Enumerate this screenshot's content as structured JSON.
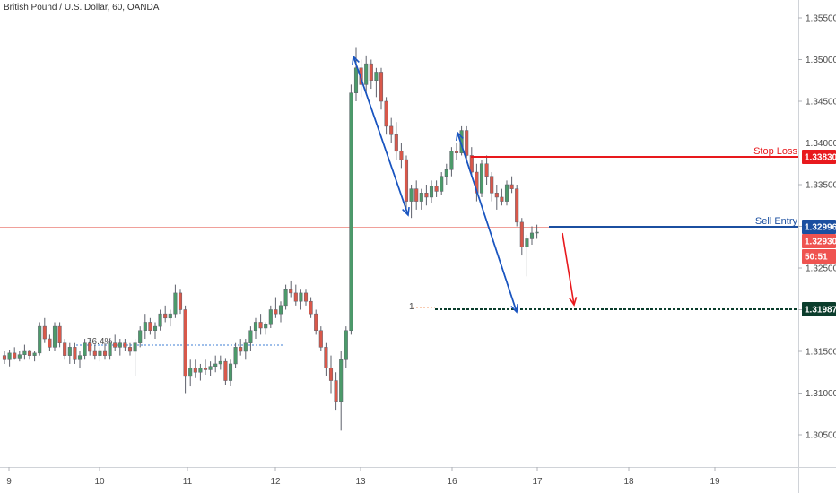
{
  "chart_data": {
    "type": "candlestick",
    "title": "British Pound / U.S. Dollar, 60, OANDA",
    "ylim": [
      1.3025,
      1.3575
    ],
    "y_ticks": [
      "1.35500",
      "1.35000",
      "1.34500",
      "1.34000",
      "1.33500",
      "1.33000",
      "1.32500",
      "1.32000",
      "1.31500",
      "1.31000",
      "1.30500"
    ],
    "x_ticks": [
      "9",
      "10",
      "11",
      "12",
      "13",
      "16",
      "17",
      "18",
      "19"
    ],
    "levels": {
      "stop_loss": {
        "label": "Stop Loss",
        "value": "1.33830",
        "color": "#e8191d"
      },
      "sell_entry": {
        "label": "Sell Entry",
        "value": "1.32996",
        "color": "#1b4fa0"
      },
      "target": {
        "value": "1.31987",
        "color": "#0b3d2c"
      },
      "current_price": {
        "value": "1.32930",
        "color": "#ef5350"
      },
      "countdown": {
        "value": "50:51",
        "color": "#ef5350"
      }
    },
    "fib_label": "76.4%",
    "fib_marker": "1",
    "colors": {
      "up": "#4c9a6a",
      "down": "#d9584a",
      "arrow_blue": "#1a55c0",
      "arrow_red": "#e8191d"
    },
    "candles": [
      [
        1.3145,
        1.315,
        1.3135,
        1.314
      ],
      [
        1.314,
        1.3152,
        1.3132,
        1.3148
      ],
      [
        1.3148,
        1.3155,
        1.314,
        1.3142
      ],
      [
        1.3142,
        1.315,
        1.3138,
        1.3146
      ],
      [
        1.3146,
        1.3158,
        1.314,
        1.315
      ],
      [
        1.315,
        1.3152,
        1.314,
        1.3145
      ],
      [
        1.3145,
        1.315,
        1.3138,
        1.3148
      ],
      [
        1.3148,
        1.3185,
        1.3145,
        1.318
      ],
      [
        1.318,
        1.319,
        1.316,
        1.3165
      ],
      [
        1.3165,
        1.317,
        1.315,
        1.3155
      ],
      [
        1.3155,
        1.3185,
        1.315,
        1.318
      ],
      [
        1.318,
        1.3185,
        1.3155,
        1.316
      ],
      [
        1.316,
        1.3165,
        1.314,
        1.3145
      ],
      [
        1.3145,
        1.316,
        1.3135,
        1.3155
      ],
      [
        1.3155,
        1.316,
        1.3135,
        1.314
      ],
      [
        1.314,
        1.315,
        1.313,
        1.3145
      ],
      [
        1.3145,
        1.3165,
        1.314,
        1.316
      ],
      [
        1.316,
        1.3165,
        1.3145,
        1.315
      ],
      [
        1.315,
        1.3158,
        1.314,
        1.3145
      ],
      [
        1.3145,
        1.3155,
        1.3138,
        1.315
      ],
      [
        1.315,
        1.316,
        1.314,
        1.3145
      ],
      [
        1.3145,
        1.3165,
        1.314,
        1.316
      ],
      [
        1.316,
        1.317,
        1.315,
        1.3155
      ],
      [
        1.3155,
        1.3165,
        1.3145,
        1.316
      ],
      [
        1.316,
        1.3165,
        1.315,
        1.3155
      ],
      [
        1.3155,
        1.316,
        1.3145,
        1.315
      ],
      [
        1.315,
        1.3165,
        1.312,
        1.316
      ],
      [
        1.316,
        1.318,
        1.3155,
        1.3175
      ],
      [
        1.3175,
        1.3195,
        1.3165,
        1.3185
      ],
      [
        1.3185,
        1.319,
        1.317,
        1.3175
      ],
      [
        1.3175,
        1.3185,
        1.3165,
        1.318
      ],
      [
        1.318,
        1.32,
        1.3175,
        1.3195
      ],
      [
        1.3195,
        1.3205,
        1.3185,
        1.319
      ],
      [
        1.319,
        1.32,
        1.318,
        1.3195
      ],
      [
        1.3195,
        1.323,
        1.319,
        1.322
      ],
      [
        1.322,
        1.3225,
        1.3195,
        1.32
      ],
      [
        1.32,
        1.3205,
        1.31,
        1.312
      ],
      [
        1.312,
        1.314,
        1.3108,
        1.313
      ],
      [
        1.313,
        1.314,
        1.3118,
        1.3125
      ],
      [
        1.3125,
        1.3135,
        1.3115,
        1.313
      ],
      [
        1.313,
        1.314,
        1.3122,
        1.3128
      ],
      [
        1.3128,
        1.3138,
        1.312,
        1.3132
      ],
      [
        1.3132,
        1.3145,
        1.3125,
        1.3135
      ],
      [
        1.3135,
        1.3145,
        1.3128,
        1.3138
      ],
      [
        1.3138,
        1.3142,
        1.311,
        1.3115
      ],
      [
        1.3115,
        1.314,
        1.3108,
        1.3135
      ],
      [
        1.3135,
        1.316,
        1.313,
        1.3155
      ],
      [
        1.3155,
        1.3165,
        1.3145,
        1.315
      ],
      [
        1.315,
        1.3165,
        1.314,
        1.316
      ],
      [
        1.316,
        1.318,
        1.315,
        1.3175
      ],
      [
        1.3175,
        1.319,
        1.3165,
        1.3185
      ],
      [
        1.3185,
        1.3195,
        1.317,
        1.3178
      ],
      [
        1.3178,
        1.3185,
        1.317,
        1.3182
      ],
      [
        1.3182,
        1.3205,
        1.3178,
        1.32
      ],
      [
        1.32,
        1.3215,
        1.319,
        1.3195
      ],
      [
        1.3195,
        1.321,
        1.3185,
        1.3205
      ],
      [
        1.3205,
        1.323,
        1.32,
        1.3225
      ],
      [
        1.3225,
        1.3235,
        1.3215,
        1.322
      ],
      [
        1.322,
        1.323,
        1.3205,
        1.321
      ],
      [
        1.321,
        1.3225,
        1.32,
        1.322
      ],
      [
        1.322,
        1.3225,
        1.3205,
        1.321
      ],
      [
        1.321,
        1.3215,
        1.319,
        1.3195
      ],
      [
        1.3195,
        1.32,
        1.317,
        1.3175
      ],
      [
        1.3175,
        1.318,
        1.315,
        1.3155
      ],
      [
        1.3155,
        1.316,
        1.312,
        1.313
      ],
      [
        1.313,
        1.3145,
        1.31,
        1.3115
      ],
      [
        1.3115,
        1.3125,
        1.308,
        1.309
      ],
      [
        1.309,
        1.315,
        1.3055,
        1.314
      ],
      [
        1.314,
        1.318,
        1.313,
        1.3175
      ],
      [
        1.3175,
        1.347,
        1.317,
        1.346
      ],
      [
        1.346,
        1.3515,
        1.345,
        1.349
      ],
      [
        1.349,
        1.35,
        1.3455,
        1.347
      ],
      [
        1.347,
        1.3505,
        1.346,
        1.3495
      ],
      [
        1.3495,
        1.35,
        1.3465,
        1.3475
      ],
      [
        1.3475,
        1.349,
        1.3455,
        1.3485
      ],
      [
        1.3485,
        1.349,
        1.344,
        1.345
      ],
      [
        1.345,
        1.3455,
        1.341,
        1.342
      ],
      [
        1.342,
        1.343,
        1.34,
        1.341
      ],
      [
        1.341,
        1.3425,
        1.338,
        1.339
      ],
      [
        1.339,
        1.34,
        1.337,
        1.338
      ],
      [
        1.338,
        1.3385,
        1.332,
        1.333
      ],
      [
        1.333,
        1.335,
        1.331,
        1.3345
      ],
      [
        1.3345,
        1.3355,
        1.332,
        1.333
      ],
      [
        1.333,
        1.3345,
        1.332,
        1.334
      ],
      [
        1.334,
        1.335,
        1.3325,
        1.3335
      ],
      [
        1.3335,
        1.3355,
        1.3328,
        1.3348
      ],
      [
        1.3348,
        1.3355,
        1.3335,
        1.3342
      ],
      [
        1.3342,
        1.3365,
        1.3338,
        1.336
      ],
      [
        1.336,
        1.3375,
        1.335,
        1.3368
      ],
      [
        1.3368,
        1.3395,
        1.336,
        1.339
      ],
      [
        1.339,
        1.34,
        1.338,
        1.3388
      ],
      [
        1.3388,
        1.342,
        1.3385,
        1.3415
      ],
      [
        1.3415,
        1.342,
        1.338,
        1.3385
      ],
      [
        1.3385,
        1.3395,
        1.336,
        1.3365
      ],
      [
        1.3365,
        1.3375,
        1.333,
        1.334
      ],
      [
        1.334,
        1.338,
        1.3335,
        1.3375
      ],
      [
        1.3375,
        1.3385,
        1.335,
        1.336
      ],
      [
        1.336,
        1.3365,
        1.333,
        1.334
      ],
      [
        1.334,
        1.335,
        1.332,
        1.3335
      ],
      [
        1.3335,
        1.3345,
        1.3325,
        1.333
      ],
      [
        1.333,
        1.3355,
        1.3325,
        1.335
      ],
      [
        1.335,
        1.336,
        1.334,
        1.3345
      ],
      [
        1.3345,
        1.335,
        1.33,
        1.3305
      ],
      [
        1.3305,
        1.331,
        1.3265,
        1.3275
      ],
      [
        1.3275,
        1.329,
        1.324,
        1.3285
      ],
      [
        1.3285,
        1.33,
        1.3278,
        1.3292
      ],
      [
        1.3292,
        1.3302,
        1.3285,
        1.3293
      ]
    ]
  }
}
